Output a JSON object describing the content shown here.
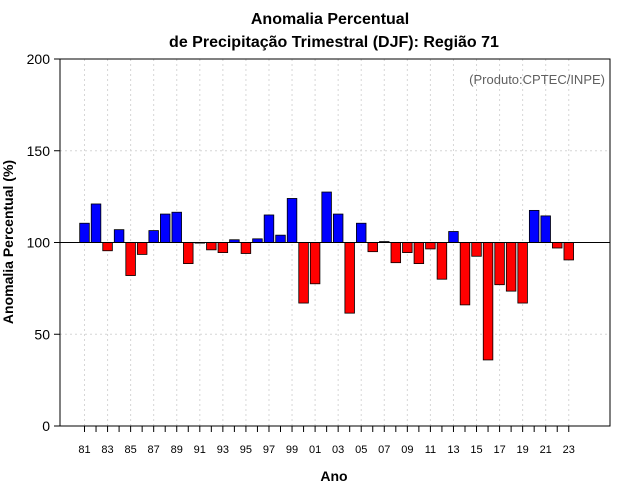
{
  "chart_data": {
    "type": "bar",
    "title_line1": "Anomalia Percentual",
    "title_line2": "de Precipitação Trimestral (DJF): Região 71",
    "xlabel": "Ano",
    "ylabel": "Anomalia Percentual (%)",
    "credit": "(Produto:CPTEC/INPE)",
    "ylim": [
      0,
      200
    ],
    "yticks": [
      0,
      50,
      100,
      150,
      200
    ],
    "baseline": 100,
    "grid": true,
    "colors": {
      "above": "#0000ff",
      "below": "#ff0000"
    },
    "xtick_labels": [
      "81",
      "83",
      "85",
      "87",
      "89",
      "91",
      "93",
      "95",
      "97",
      "99",
      "01",
      "03",
      "05",
      "07",
      "09",
      "11",
      "13",
      "15",
      "17",
      "19",
      "21",
      "23"
    ],
    "categories": [
      "81",
      "82",
      "83",
      "84",
      "85",
      "86",
      "87",
      "88",
      "89",
      "90",
      "91",
      "92",
      "93",
      "94",
      "95",
      "96",
      "97",
      "98",
      "99",
      "00",
      "01",
      "02",
      "03",
      "04",
      "05",
      "06",
      "07",
      "08",
      "09",
      "10",
      "11",
      "12",
      "13",
      "14",
      "15",
      "16",
      "17",
      "18",
      "19",
      "20",
      "21",
      "22",
      "23"
    ],
    "values": [
      110.5,
      121,
      95.5,
      107,
      82,
      93.5,
      106.5,
      115.5,
      116.5,
      88.5,
      100,
      96,
      94.5,
      101.5,
      94,
      102,
      115,
      104,
      124,
      67,
      77.5,
      127.5,
      115.5,
      61.5,
      110.5,
      95,
      100.5,
      89,
      94.5,
      88.5,
      96.5,
      80,
      106,
      66,
      92.5,
      36,
      77,
      73.5,
      67,
      117.5,
      114.5,
      97,
      90.5
    ]
  }
}
